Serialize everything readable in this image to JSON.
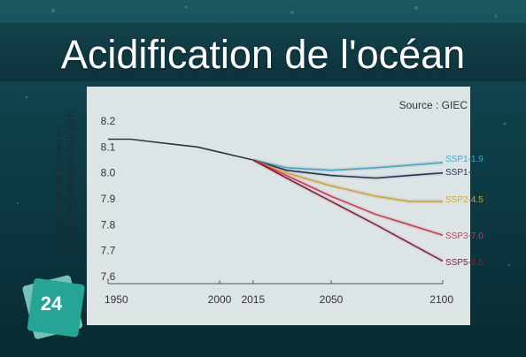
{
  "title": "Acidification de l'océan",
  "source": "Source : GIEC",
  "badge_number": "24",
  "colors": {
    "ocean_top": "#0d3e47",
    "ocean_bottom": "#0a2b33",
    "panel": "#e9eeee",
    "badge": "#1e9e91"
  },
  "chart_data": {
    "type": "line",
    "ylabel": "Acidification de l'océan en fonction des scénarios SSP (pH)",
    "xlim": [
      1950,
      2100
    ],
    "ylim": [
      7.6,
      8.2
    ],
    "x_ticks": [
      "1950",
      "2000",
      "2015",
      "2050",
      "2100"
    ],
    "y_ticks": [
      "8.2",
      "8.1",
      "8.0",
      "7.9",
      "7.8",
      "7.7",
      "7.6"
    ],
    "grid": false,
    "historical": {
      "color": "#333333",
      "x": [
        1950,
        1960,
        1970,
        1980,
        1990,
        2000,
        2010,
        2015
      ],
      "y": [
        8.13,
        8.13,
        8.12,
        8.11,
        8.1,
        8.08,
        8.06,
        8.05
      ]
    },
    "series": [
      {
        "name": "SSP1-1.9",
        "color": "#3ba8cf",
        "x": [
          2015,
          2030,
          2050,
          2070,
          2085,
          2100
        ],
        "y": [
          8.05,
          8.02,
          8.01,
          8.02,
          8.03,
          8.04
        ]
      },
      {
        "name": "SSP1-2.6",
        "color": "#1d3557",
        "x": [
          2015,
          2030,
          2050,
          2070,
          2085,
          2100
        ],
        "y": [
          8.05,
          8.01,
          7.99,
          7.98,
          7.99,
          8.0
        ]
      },
      {
        "name": "SSP2-4.5",
        "color": "#d9a327",
        "x": [
          2015,
          2030,
          2050,
          2070,
          2085,
          2100
        ],
        "y": [
          8.05,
          8.0,
          7.95,
          7.91,
          7.89,
          7.89
        ]
      },
      {
        "name": "SSP3-7.0",
        "color": "#d9344f",
        "x": [
          2015,
          2030,
          2050,
          2070,
          2085,
          2100
        ],
        "y": [
          8.05,
          7.99,
          7.91,
          7.84,
          7.8,
          7.76
        ]
      },
      {
        "name": "SSP5-8.5",
        "color": "#8b1a3d",
        "x": [
          2015,
          2030,
          2050,
          2070,
          2085,
          2100
        ],
        "y": [
          8.05,
          7.98,
          7.89,
          7.8,
          7.73,
          7.66
        ]
      }
    ]
  }
}
